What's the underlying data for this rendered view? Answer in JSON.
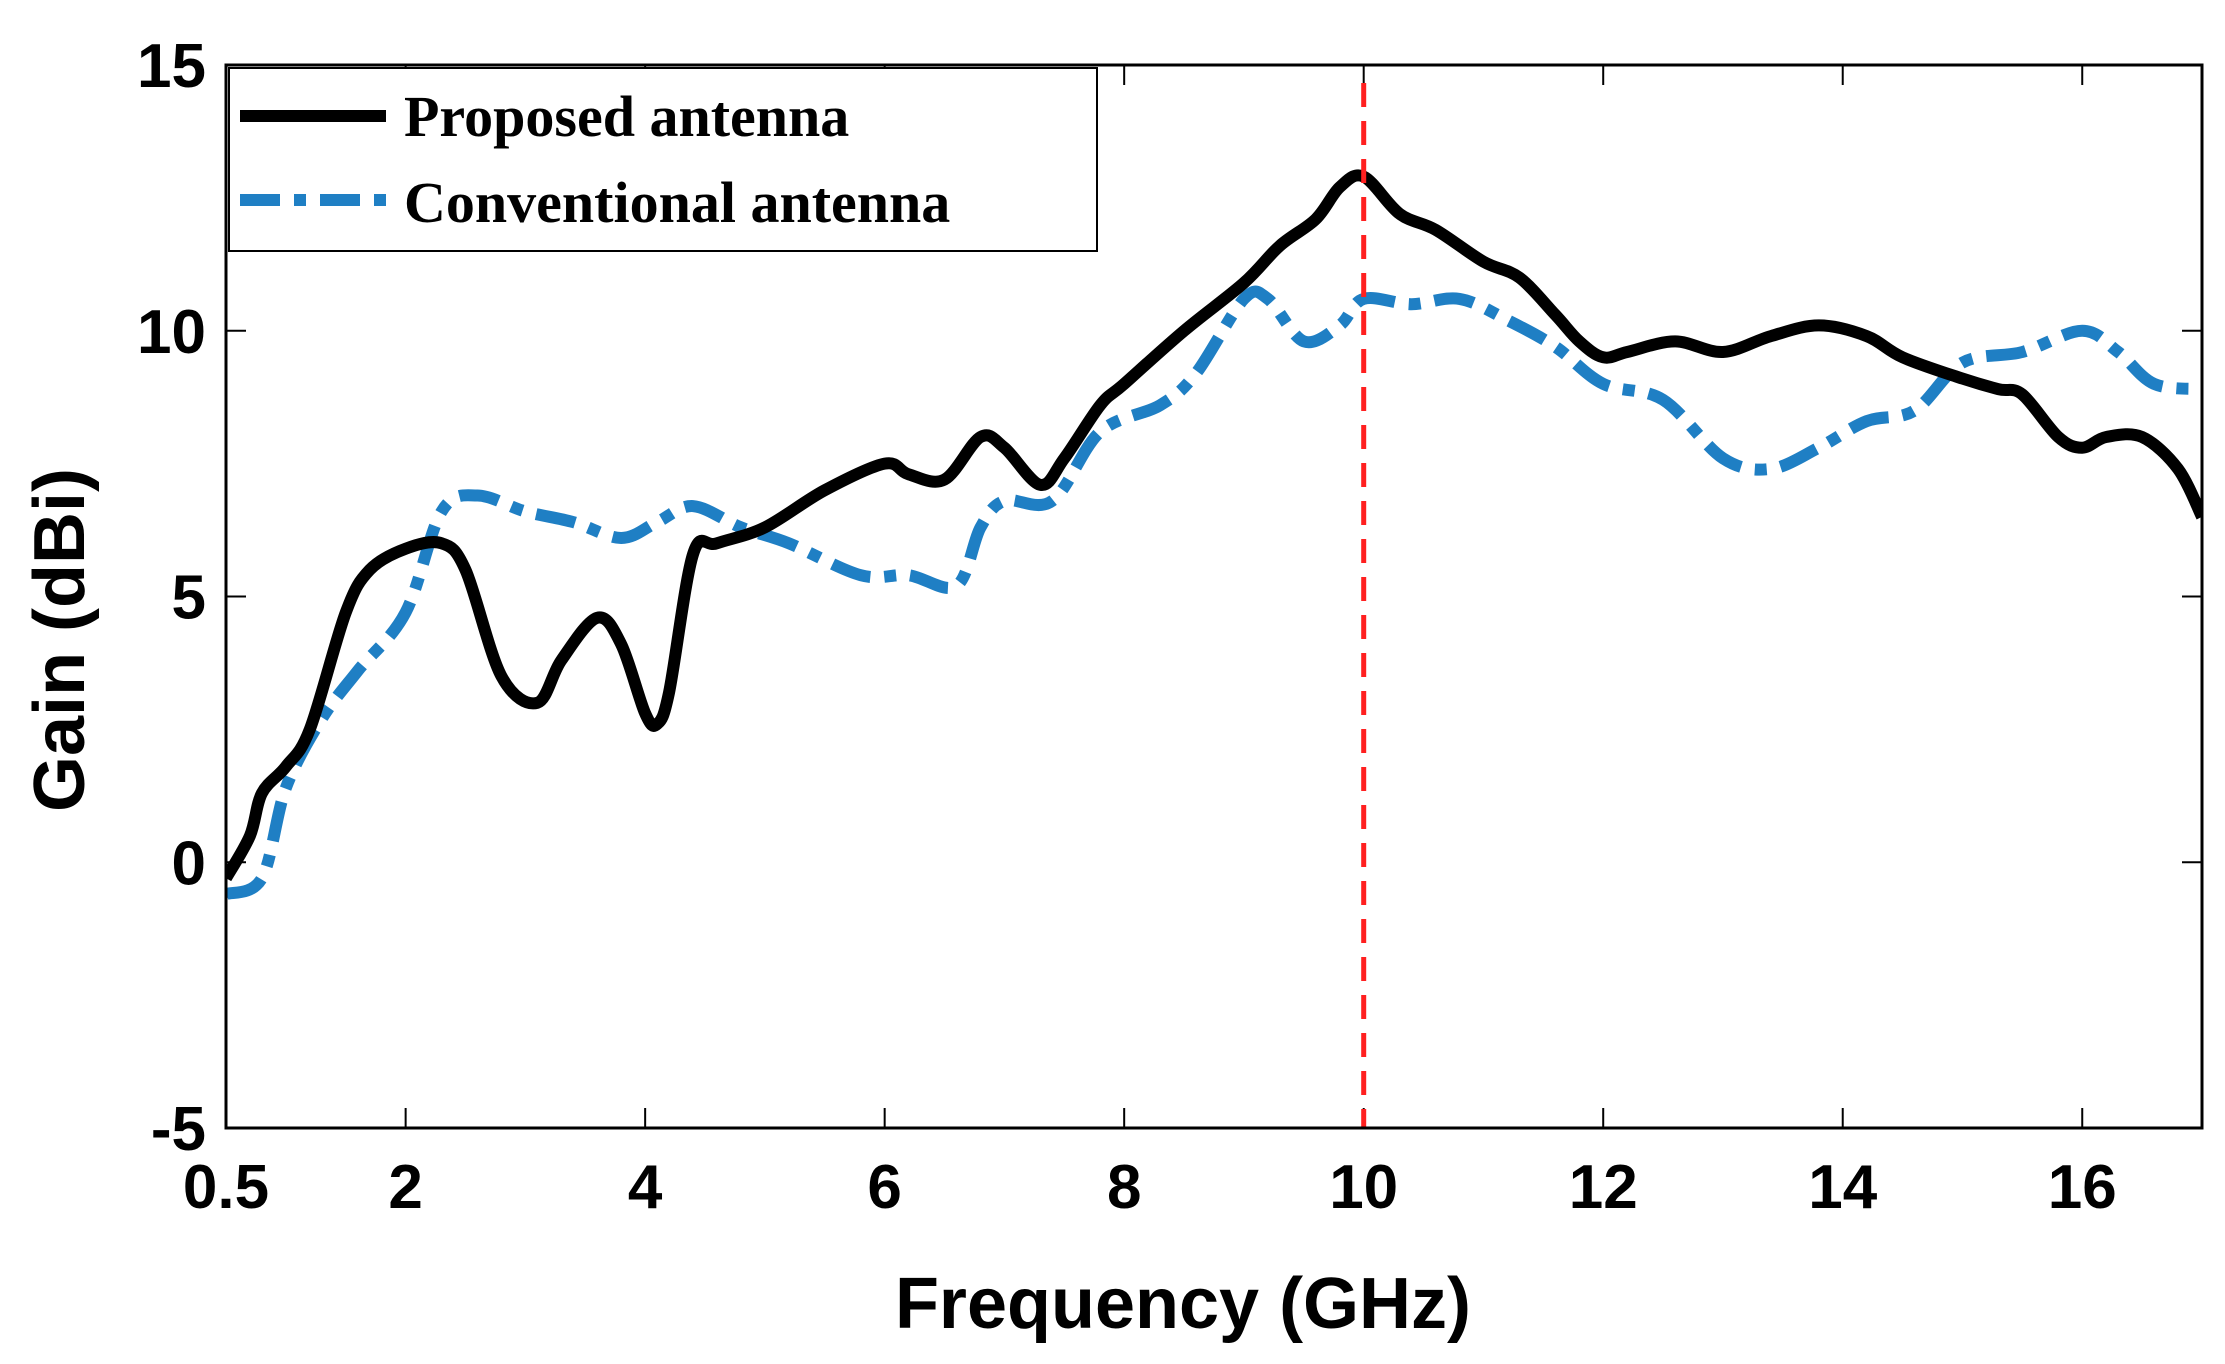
{
  "chart_data": {
    "type": "line",
    "title": "",
    "xlabel": "Frequency (GHz)",
    "ylabel": "Gain (dBi)",
    "xlim": [
      0.5,
      17
    ],
    "ylim": [
      -5,
      15
    ],
    "xticks": [
      0.5,
      2,
      4,
      6,
      8,
      10,
      12,
      14,
      16
    ],
    "xtick_labels": [
      "0.5",
      "2",
      "4",
      "6",
      "8",
      "10",
      "12",
      "14",
      "16"
    ],
    "yticks": [
      -5,
      0,
      5,
      10,
      15
    ],
    "ytick_labels": [
      "-5",
      "0",
      "5",
      "10",
      "15"
    ],
    "grid": false,
    "legend_position": "top-left",
    "reference_line": {
      "x": 10,
      "color": "#ff2020",
      "style": "dashed"
    },
    "series": [
      {
        "name": "Proposed antenna",
        "color": "#000000",
        "style": "solid",
        "x": [
          0.5,
          0.7,
          0.8,
          1.0,
          1.2,
          1.5,
          1.7,
          2.0,
          2.3,
          2.5,
          2.8,
          3.1,
          3.3,
          3.6,
          3.8,
          4.0,
          4.1,
          4.2,
          4.4,
          4.6,
          5.0,
          5.5,
          6.0,
          6.2,
          6.5,
          6.8,
          7.0,
          7.3,
          7.5,
          7.8,
          8.0,
          8.5,
          9.0,
          9.3,
          9.6,
          9.8,
          10.0,
          10.3,
          10.6,
          11.0,
          11.3,
          11.6,
          11.8,
          12.0,
          12.2,
          12.6,
          13.0,
          13.4,
          13.8,
          14.2,
          14.5,
          15.0,
          15.3,
          15.5,
          15.8,
          16.0,
          16.2,
          16.5,
          16.8,
          17.0
        ],
        "values": [
          -0.3,
          0.5,
          1.3,
          1.8,
          2.5,
          4.7,
          5.5,
          5.9,
          6.0,
          5.5,
          3.5,
          3.0,
          3.8,
          4.6,
          4.1,
          2.8,
          2.6,
          3.2,
          5.8,
          6.0,
          6.3,
          7.0,
          7.5,
          7.3,
          7.2,
          8.0,
          7.8,
          7.1,
          7.6,
          8.6,
          9.0,
          10.0,
          10.9,
          11.6,
          12.1,
          12.7,
          12.9,
          12.2,
          11.9,
          11.3,
          11.0,
          10.3,
          9.8,
          9.5,
          9.6,
          9.8,
          9.6,
          9.9,
          10.1,
          9.9,
          9.5,
          9.1,
          8.9,
          8.8,
          8.0,
          7.8,
          8.0,
          8.0,
          7.4,
          6.5
        ]
      },
      {
        "name": "Conventional antenna",
        "color": "#1f7fc4",
        "style": "dashdot",
        "x": [
          0.5,
          0.8,
          1.0,
          1.3,
          1.6,
          2.0,
          2.3,
          2.6,
          3.0,
          3.4,
          3.8,
          4.1,
          4.4,
          4.8,
          5.2,
          5.8,
          6.2,
          6.6,
          6.8,
          7.0,
          7.4,
          7.8,
          8.3,
          8.6,
          9.0,
          9.2,
          9.5,
          9.8,
          10.0,
          10.4,
          10.8,
          11.2,
          11.6,
          12.0,
          12.5,
          13.0,
          13.4,
          13.8,
          14.2,
          14.6,
          15.0,
          15.5,
          16.0,
          16.3,
          16.6,
          17.0
        ],
        "values": [
          -0.6,
          -0.3,
          1.4,
          2.7,
          3.6,
          4.7,
          6.6,
          6.9,
          6.6,
          6.4,
          6.1,
          6.4,
          6.7,
          6.3,
          6.0,
          5.4,
          5.4,
          5.2,
          6.3,
          6.8,
          6.8,
          8.1,
          8.6,
          9.2,
          10.6,
          10.6,
          9.8,
          10.1,
          10.6,
          10.5,
          10.6,
          10.2,
          9.7,
          9.0,
          8.7,
          7.6,
          7.4,
          7.8,
          8.3,
          8.5,
          9.4,
          9.6,
          10.0,
          9.6,
          9.0,
          8.9
        ]
      }
    ]
  }
}
